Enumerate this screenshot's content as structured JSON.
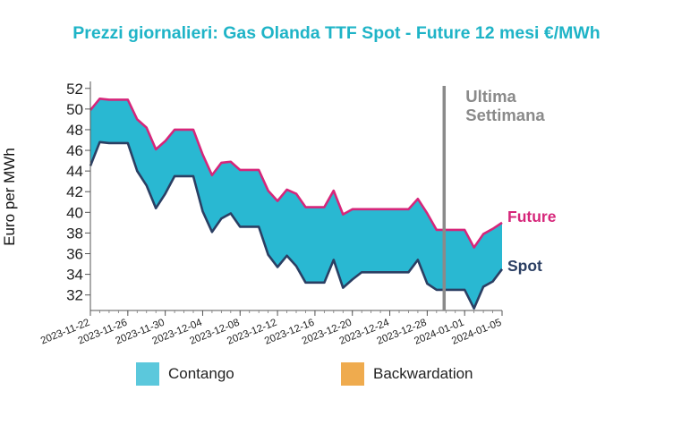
{
  "colors": {
    "title": "#1fb4c7",
    "band_fill": "#29b8d2",
    "future_line": "#d6267a",
    "spot_line": "#2b3f63",
    "week_marker": "#8a8a8a",
    "contango": "#5bc8dc",
    "backwardation": "#efab4e"
  },
  "chart_data": {
    "type": "area",
    "title": "Prezzi giornalieri: Gas Olanda TTF Spot - Future 12 mesi €/MWh",
    "ylabel": "Euro per MWh",
    "xlabel": "",
    "ylim": [
      30.5,
      52.5
    ],
    "yticks": [
      32,
      34,
      36,
      38,
      40,
      42,
      44,
      46,
      48,
      50,
      52
    ],
    "xlim": [
      "2023-11-22",
      "2024-01-05"
    ],
    "xticks": [
      "2023-11-22",
      "2023-11-26",
      "2023-11-30",
      "2023-12-04",
      "2023-12-08",
      "2023-12-12",
      "2023-12-16",
      "2023-12-20",
      "2023-12-24",
      "2023-12-28",
      "2024-01-01",
      "2024-01-05"
    ],
    "grid": false,
    "x": [
      "2023-11-22",
      "2023-11-23",
      "2023-11-24",
      "2023-11-25",
      "2023-11-26",
      "2023-11-27",
      "2023-11-28",
      "2023-11-29",
      "2023-11-30",
      "2023-12-01",
      "2023-12-02",
      "2023-12-03",
      "2023-12-04",
      "2023-12-05",
      "2023-12-06",
      "2023-12-07",
      "2023-12-08",
      "2023-12-09",
      "2023-12-10",
      "2023-12-11",
      "2023-12-12",
      "2023-12-13",
      "2023-12-14",
      "2023-12-15",
      "2023-12-16",
      "2023-12-17",
      "2023-12-18",
      "2023-12-19",
      "2023-12-20",
      "2023-12-21",
      "2023-12-22",
      "2023-12-23",
      "2023-12-24",
      "2023-12-25",
      "2023-12-26",
      "2023-12-27",
      "2023-12-28",
      "2023-12-29",
      "2023-12-30",
      "2023-12-31",
      "2024-01-01",
      "2024-01-02",
      "2024-01-03",
      "2024-01-04",
      "2024-01-05"
    ],
    "series": [
      {
        "name": "Future",
        "values": [
          49.9,
          51.0,
          50.9,
          50.9,
          50.9,
          49.0,
          48.2,
          46.1,
          46.9,
          48.0,
          48.0,
          48.0,
          45.6,
          43.6,
          44.8,
          44.9,
          44.1,
          44.1,
          44.1,
          42.1,
          41.1,
          42.2,
          41.8,
          40.5,
          40.5,
          40.5,
          42.1,
          39.8,
          40.3,
          40.3,
          40.3,
          40.3,
          40.3,
          40.3,
          40.3,
          41.3,
          39.9,
          38.3,
          38.3,
          38.3,
          38.3,
          36.6,
          37.9,
          38.4,
          39.0
        ]
      },
      {
        "name": "Spot",
        "values": [
          44.5,
          46.8,
          46.7,
          46.7,
          46.7,
          44.0,
          42.6,
          40.4,
          41.8,
          43.5,
          43.5,
          43.5,
          40.1,
          38.1,
          39.4,
          39.9,
          38.6,
          38.6,
          38.6,
          35.9,
          34.7,
          35.8,
          34.8,
          33.2,
          33.2,
          33.2,
          35.4,
          32.7,
          33.5,
          34.2,
          34.2,
          34.2,
          34.2,
          34.2,
          34.2,
          35.4,
          33.1,
          32.5,
          32.5,
          32.5,
          32.5,
          30.7,
          32.8,
          33.3,
          34.5
        ]
      }
    ],
    "annotations": {
      "week_marker_date": "2023-12-30",
      "week_marker_label": [
        "Ultima",
        "Settimana"
      ],
      "future_label": "Future",
      "spot_label": "Spot"
    },
    "legend": {
      "placement": "bottom",
      "items": [
        {
          "label": "Contango",
          "color": "#5bc8dc"
        },
        {
          "label": "Backwardation",
          "color": "#efab4e"
        }
      ]
    }
  }
}
